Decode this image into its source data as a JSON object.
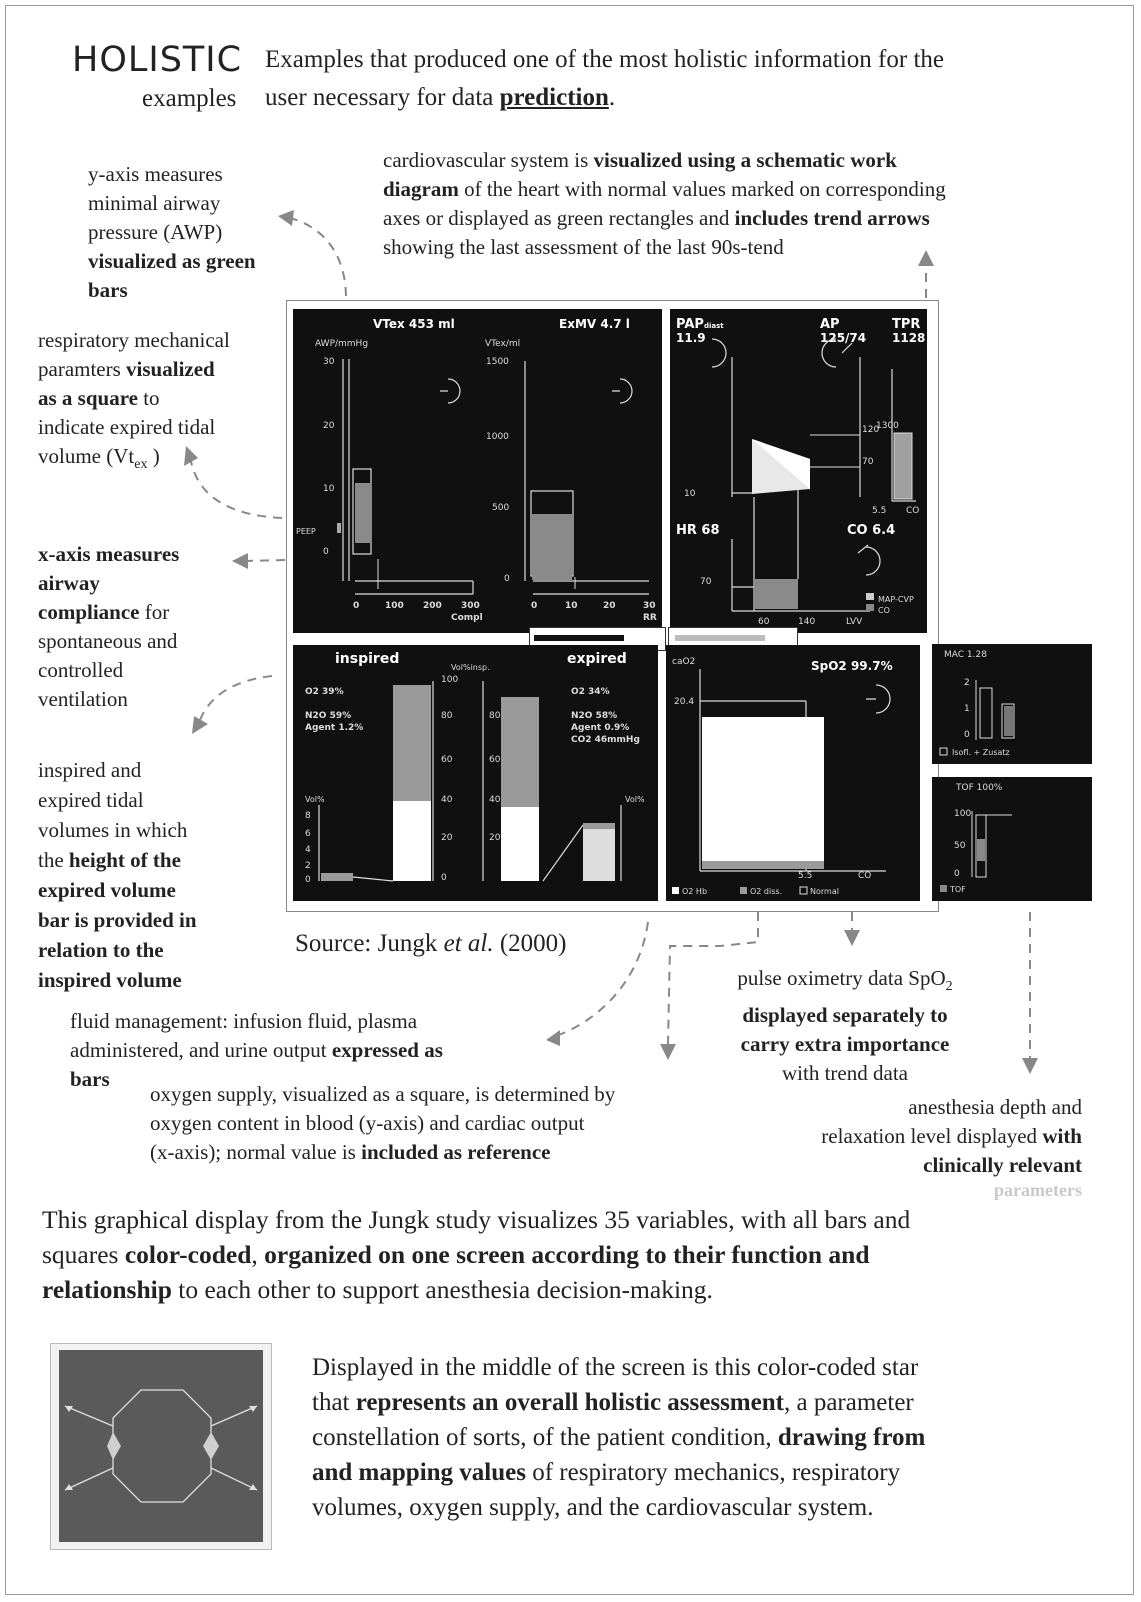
{
  "header": {
    "title": "HOLISTIC",
    "subtitle": "examples",
    "intro_a": "Examples that produced one of the most holistic information for the",
    "intro_b": "user necessary for data",
    "intro_bold": "prediction",
    "intro_end": "."
  },
  "annotations": {
    "awp": {
      "a": "y-axis measures",
      "b": "minimal airway",
      "c": "pressure (AWP)",
      "d": "visualized as green",
      "e": "bars"
    },
    "resp": {
      "a": "respiratory mechanical",
      "b1": "paramters ",
      "b2": "visualized",
      "c1": "as a square",
      "c2": " to",
      "d": "indicate expired tidal",
      "e": "volume (Vt",
      "sub": "ex",
      "f": ")"
    },
    "xaxis": {
      "a": "x-axis measures",
      "b": "airway",
      "c1": "compliance",
      "c2": " for",
      "d": "spontaneous and",
      "e": "controlled",
      "f": "ventilation"
    },
    "tidal": {
      "a": "inspired and",
      "b": "expired tidal",
      "c": "volumes in which",
      "d1": "the ",
      "d2": "height of the",
      "e": "expired volume",
      "f": "bar is provided in",
      "g": "relation to the",
      "h": "inspired volume"
    },
    "cardio": {
      "a": "cardiovascular system is ",
      "b": "visualized using a schematic work",
      "c1": "diagram",
      "c2": " of the heart with normal values marked on corresponding",
      "d1": "axes or displayed as green rectangles and ",
      "d2": "includes trend arrows",
      "e": "showing the last assessment of the last 90s-tend"
    },
    "fluid": {
      "a": "fluid management: infusion fluid, plasma",
      "b1": "administered, and urine output ",
      "b2": "expressed as",
      "c": "bars"
    },
    "oxygen": {
      "a": "oxygen supply, visualized as a square, is determined by",
      "b": "oxygen content in blood (y-axis) and cardiac output",
      "c1": "(x-axis); normal value is ",
      "c2": "included as reference"
    },
    "pulse": {
      "a1": "pulse oximetry data SpO",
      "a2": "2",
      "b": "displayed separately to",
      "c": "carry extra importance",
      "d": "with trend data"
    },
    "anesth": {
      "a1": "anesthesia depth and",
      "b1": "relaxation level displayed ",
      "b2": "with",
      "c": "clinically relevant",
      "d": "parameters"
    },
    "source": {
      "a": "Source: Jungk ",
      "b": "et al.",
      "c": " (2000)"
    }
  },
  "monitor": {
    "vtex": "VTex  453 ml",
    "exmv": "ExMV  4.7 l",
    "awp_axis": "AWP/mmHg",
    "vtex_axis": "VTex/ml",
    "awp_ticks": [
      "30",
      "20",
      "10",
      "0"
    ],
    "vt_ticks": [
      "1500",
      "1000",
      "500",
      "0"
    ],
    "peep": "PEEP",
    "compl_ticks": [
      "0",
      "100",
      "200",
      "300"
    ],
    "compl": "Compl",
    "rr_ticks": [
      "0",
      "10",
      "20",
      "30"
    ],
    "rr": "RR",
    "pap_label": "PAP",
    "pap_sub": "diast",
    "pap_value": "11.9",
    "ap_label": "AP",
    "ap_value": "125/74",
    "tpr_label": "TPR",
    "tpr_value": "1128",
    "hr": "HR  68",
    "co": "CO  6.4",
    "tick_120": "120",
    "tick_70": "70",
    "tick_10": "10",
    "tick_1300": "1300",
    "tick_55": "5.5",
    "co_axis": "CO",
    "hr_70": "70",
    "lvv_60": "60",
    "lvv_140": "140",
    "lvv": "LVV",
    "legend_map": "MAP-CVP",
    "legend_co": "CO",
    "inspired": "inspired",
    "expired": "expired",
    "o2_ins": "O2   39%",
    "n2o_ins": "N2O  59%",
    "agent_ins": "Agent 1.2%",
    "o2_exp": "O2   34%",
    "n2o_exp": "N2O  58%",
    "agent_exp": "Agent 0.9%",
    "co2_exp": "CO2   46mmHg",
    "vol_insp": "Vol%insp.",
    "vol_pct": "Vol%",
    "pct_ticks": [
      "100",
      "80",
      "60",
      "40",
      "20",
      "0"
    ],
    "small_ticks": [
      "8",
      "6",
      "4",
      "2",
      "0"
    ],
    "cao2": "caO2",
    "spo2": "SpO2  99.7%",
    "spo2_204": "20.4",
    "spo2_55": "5.5",
    "spo2_co": "CO",
    "spo2_legend": [
      "O2 Hb",
      "O2 diss.",
      "Normal"
    ],
    "mac": "MAC 1.28",
    "mac_ticks": [
      "2",
      "1",
      "0"
    ],
    "mac_legend": "Isofl. + Zusatz",
    "tof": "TOF 100%",
    "tof_ticks": [
      "100",
      "50",
      "0"
    ],
    "tof_legend": "TOF"
  },
  "paragraph1": {
    "a": "This graphical display from the Jungk study visualizes 35 variables, with all bars and",
    "b1": "squares ",
    "b2": "color-coded",
    "b3": ", ",
    "b4": "organized on one screen according to their function and",
    "c1": "relationship",
    "c2": " to each other to support anesthesia decision-making."
  },
  "paragraph2": {
    "a": "Displayed in the middle of the screen is this color-coded star",
    "b1": "that ",
    "b2": "represents an overall holistic assessment",
    "b3": ", a parameter",
    "c1": "constellation of sorts, of the patient condition, ",
    "c2": "drawing from",
    "d1": "and mapping values",
    "d2": " of respiratory mechanics, respiratory",
    "e": "volumes, oxygen supply, and the cardiovascular system."
  }
}
